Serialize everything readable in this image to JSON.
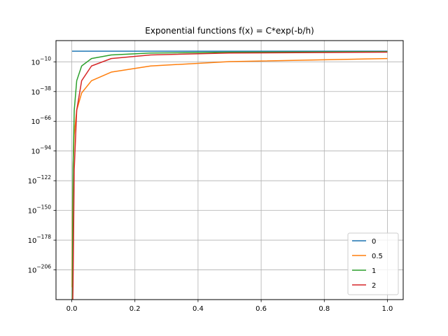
{
  "chart_data": {
    "type": "line",
    "title": "Exponential functions f(x) = C*exp(-b/h)",
    "xlabel": "",
    "ylabel": "",
    "y_scale": "log10",
    "xlim": [
      -0.05,
      1.05
    ],
    "ylim_exponent": [
      -234,
      10
    ],
    "x_ticks": [
      0.0,
      0.2,
      0.4,
      0.6,
      0.8,
      1.0
    ],
    "x_tick_labels": [
      "0.0",
      "0.2",
      "0.4",
      "0.6",
      "0.8",
      "1.0"
    ],
    "y_tick_exponents": [
      -10,
      -38,
      -66,
      -94,
      -122,
      -150,
      -178,
      -206
    ],
    "y_tick_labels": [
      {
        "base": "10",
        "exp": "−10"
      },
      {
        "base": "10",
        "exp": "−38"
      },
      {
        "base": "10",
        "exp": "−66"
      },
      {
        "base": "10",
        "exp": "−94"
      },
      {
        "base": "10",
        "exp": "−122"
      },
      {
        "base": "10",
        "exp": "−150"
      },
      {
        "base": "10",
        "exp": "−178"
      },
      {
        "base": "10",
        "exp": "−206"
      }
    ],
    "grid": true,
    "legend_position": "bottom-right",
    "x": [
      0.0009765625,
      0.001953125,
      0.00390625,
      0.0078125,
      0.015625,
      0.03125,
      0.0625,
      0.125,
      0.25,
      0.5,
      1.0
    ],
    "series": [
      {
        "name": "0",
        "color": "#1f77b4",
        "log10_values": [
          0,
          0,
          0,
          0,
          0,
          0,
          0,
          0,
          0,
          0,
          0
        ]
      },
      {
        "name": "0.5",
        "color": "#ff7f0e",
        "log10_values": [
          -222.4,
          -157.3,
          -111.2,
          -78.6,
          -55.6,
          -39.3,
          -27.8,
          -19.7,
          -13.9,
          -9.8,
          -6.9
        ]
      },
      {
        "name": "1",
        "color": "#2ca02c",
        "log10_values": [
          -444.7,
          -222.4,
          -111.2,
          -55.6,
          -27.8,
          -13.9,
          -6.9,
          -3.5,
          -1.7,
          -0.9,
          -0.4
        ]
      },
      {
        "name": "2",
        "color": "#d62728",
        "log10_values": [
          -889.5,
          -444.7,
          -222.4,
          -111.2,
          -55.6,
          -27.8,
          -13.9,
          -6.9,
          -3.5,
          -1.7,
          -0.9
        ]
      }
    ]
  }
}
